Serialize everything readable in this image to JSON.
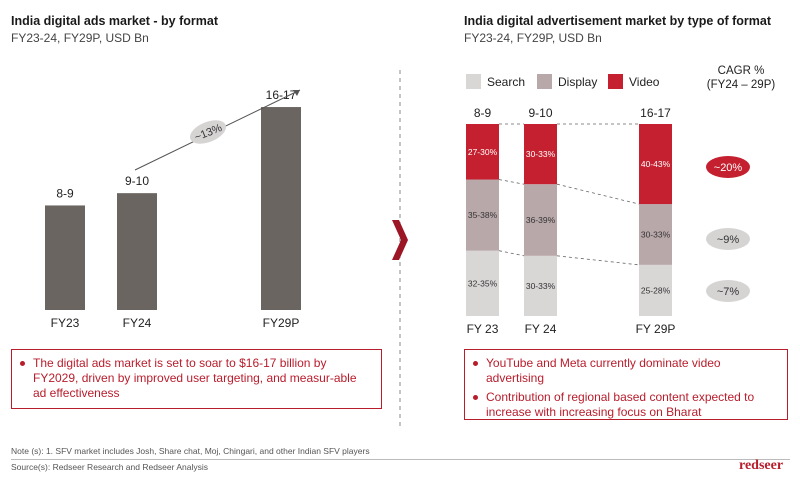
{
  "colors": {
    "dark_bar": "#6b6561",
    "search": "#d9d6d6",
    "display": "#b9a8aa",
    "video": "#c4202f",
    "accent": "#b81d2c",
    "pill_grey": "#d6d3d3"
  },
  "left": {
    "title": "India digital ads market - by format",
    "subtitle": "FY23-24, FY29P, USD Bn",
    "growth_label": "~13%",
    "callout": [
      "The digital ads market is set to soar to $16-17 billion by FY2029, driven by improved user targeting, and measur-able ad effectiveness"
    ]
  },
  "right": {
    "title": "India digital advertisement market by type of format",
    "subtitle": "FY23-24, FY29P, USD Bn",
    "cagr_header": "CAGR %",
    "cagr_header_sub": "(FY24 – 29P)",
    "cagr": [
      "~20%",
      "~9%",
      "~7%"
    ],
    "callout": [
      "YouTube and Meta currently dominate video advertising",
      "Contribution of regional based content expected to increase with increasing focus on Bharat"
    ]
  },
  "chart_data": [
    {
      "type": "bar",
      "title": "India digital ads market - by format",
      "categories": [
        "FY23",
        "FY24",
        "FY29P"
      ],
      "values": [
        8.5,
        9.5,
        16.5
      ],
      "labels": [
        "8-9",
        "9-10",
        "16-17"
      ],
      "annotation": "~13%"
    },
    {
      "type": "bar",
      "stacked": true,
      "percent": true,
      "title": "India digital advertisement market by type of format",
      "categories": [
        "FY 23",
        "FY 24",
        "FY 29P"
      ],
      "totals": [
        "8-9",
        "9-10",
        "16-17"
      ],
      "legend": [
        "Search",
        "Display",
        "Video"
      ],
      "series": [
        {
          "name": "Search",
          "values": [
            33.5,
            31.5,
            26.5
          ],
          "labels": [
            "32-35%",
            "30-33%",
            "25-28%"
          ]
        },
        {
          "name": "Display",
          "values": [
            36.5,
            37.5,
            31.5
          ],
          "labels": [
            "35-38%",
            "36-39%",
            "30-33%"
          ]
        },
        {
          "name": "Video",
          "values": [
            28.5,
            31.5,
            41.5
          ],
          "labels": [
            "27-30%",
            "30-33%",
            "40-43%"
          ]
        }
      ]
    }
  ],
  "footer": {
    "note": "Note (s): 1. SFV market includes Josh, Share chat, Moj, Chingari, and other Indian SFV players",
    "source": "Source(s): Redseer Research and Redseer Analysis",
    "brand": "redseer"
  }
}
